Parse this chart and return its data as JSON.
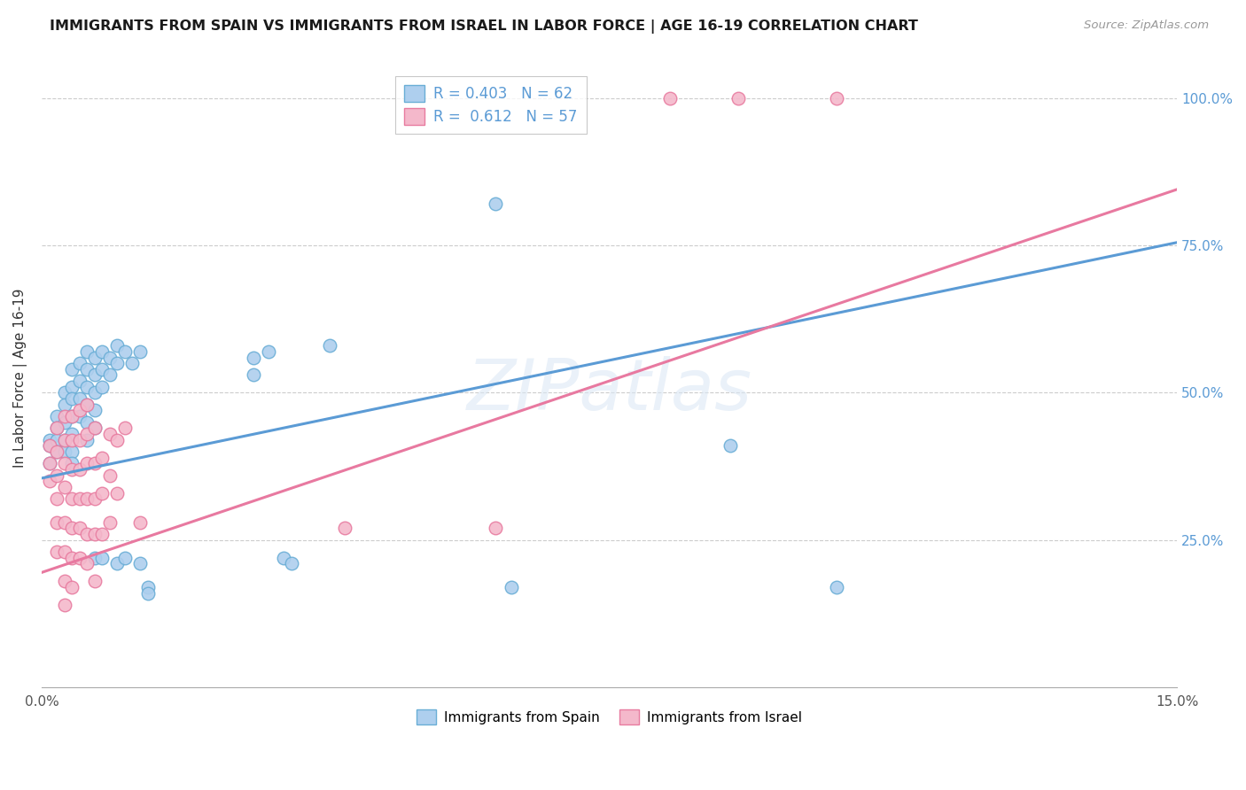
{
  "title": "IMMIGRANTS FROM SPAIN VS IMMIGRANTS FROM ISRAEL IN LABOR FORCE | AGE 16-19 CORRELATION CHART",
  "source": "Source: ZipAtlas.com",
  "ylabel": "In Labor Force | Age 16-19",
  "xmin": 0.0,
  "xmax": 0.15,
  "ymin": 0.0,
  "ymax": 1.05,
  "ytick_positions": [
    0.0,
    0.25,
    0.5,
    0.75,
    1.0
  ],
  "ytick_labels": [
    "",
    "25.0%",
    "50.0%",
    "75.0%",
    "100.0%"
  ],
  "xtick_positions": [
    0.0,
    0.05,
    0.1,
    0.15
  ],
  "xtick_labels": [
    "0.0%",
    "",
    "",
    "15.0%"
  ],
  "spain_fill_color": "#aecfee",
  "israel_fill_color": "#f4b8cb",
  "spain_edge_color": "#6aaed6",
  "israel_edge_color": "#e87ca0",
  "spain_line_color": "#5b9bd5",
  "israel_line_color": "#e879a0",
  "right_axis_color": "#5b9bd5",
  "legend_r_spain": "R = 0.403",
  "legend_n_spain": "N = 62",
  "legend_r_israel": "R =  0.612",
  "legend_n_israel": "N = 57",
  "watermark": "ZIPatlas",
  "spain_line_endpoints": [
    [
      0.0,
      0.355
    ],
    [
      0.15,
      0.755
    ]
  ],
  "israel_line_endpoints": [
    [
      0.0,
      0.195
    ],
    [
      0.15,
      0.845
    ]
  ],
  "spain_scatter": [
    [
      0.001,
      0.42
    ],
    [
      0.001,
      0.41
    ],
    [
      0.001,
      0.38
    ],
    [
      0.002,
      0.46
    ],
    [
      0.002,
      0.44
    ],
    [
      0.002,
      0.42
    ],
    [
      0.002,
      0.4
    ],
    [
      0.003,
      0.5
    ],
    [
      0.003,
      0.48
    ],
    [
      0.003,
      0.45
    ],
    [
      0.003,
      0.42
    ],
    [
      0.003,
      0.4
    ],
    [
      0.004,
      0.54
    ],
    [
      0.004,
      0.51
    ],
    [
      0.004,
      0.49
    ],
    [
      0.004,
      0.46
    ],
    [
      0.004,
      0.43
    ],
    [
      0.004,
      0.4
    ],
    [
      0.004,
      0.38
    ],
    [
      0.005,
      0.55
    ],
    [
      0.005,
      0.52
    ],
    [
      0.005,
      0.49
    ],
    [
      0.005,
      0.46
    ],
    [
      0.006,
      0.57
    ],
    [
      0.006,
      0.54
    ],
    [
      0.006,
      0.51
    ],
    [
      0.006,
      0.48
    ],
    [
      0.006,
      0.45
    ],
    [
      0.006,
      0.42
    ],
    [
      0.007,
      0.56
    ],
    [
      0.007,
      0.53
    ],
    [
      0.007,
      0.5
    ],
    [
      0.007,
      0.47
    ],
    [
      0.007,
      0.44
    ],
    [
      0.007,
      0.22
    ],
    [
      0.008,
      0.57
    ],
    [
      0.008,
      0.54
    ],
    [
      0.008,
      0.51
    ],
    [
      0.008,
      0.22
    ],
    [
      0.009,
      0.56
    ],
    [
      0.009,
      0.53
    ],
    [
      0.01,
      0.58
    ],
    [
      0.01,
      0.55
    ],
    [
      0.01,
      0.21
    ],
    [
      0.011,
      0.57
    ],
    [
      0.011,
      0.22
    ],
    [
      0.012,
      0.55
    ],
    [
      0.013,
      0.57
    ],
    [
      0.013,
      0.21
    ],
    [
      0.014,
      0.17
    ],
    [
      0.014,
      0.16
    ],
    [
      0.028,
      0.56
    ],
    [
      0.028,
      0.53
    ],
    [
      0.03,
      0.57
    ],
    [
      0.032,
      0.22
    ],
    [
      0.033,
      0.21
    ],
    [
      0.038,
      0.58
    ],
    [
      0.06,
      0.82
    ],
    [
      0.062,
      0.17
    ],
    [
      0.091,
      0.41
    ],
    [
      0.105,
      0.17
    ]
  ],
  "israel_scatter": [
    [
      0.001,
      0.41
    ],
    [
      0.001,
      0.38
    ],
    [
      0.001,
      0.35
    ],
    [
      0.002,
      0.44
    ],
    [
      0.002,
      0.4
    ],
    [
      0.002,
      0.36
    ],
    [
      0.002,
      0.32
    ],
    [
      0.002,
      0.28
    ],
    [
      0.002,
      0.23
    ],
    [
      0.003,
      0.46
    ],
    [
      0.003,
      0.42
    ],
    [
      0.003,
      0.38
    ],
    [
      0.003,
      0.34
    ],
    [
      0.003,
      0.28
    ],
    [
      0.003,
      0.23
    ],
    [
      0.003,
      0.18
    ],
    [
      0.003,
      0.14
    ],
    [
      0.004,
      0.46
    ],
    [
      0.004,
      0.42
    ],
    [
      0.004,
      0.37
    ],
    [
      0.004,
      0.32
    ],
    [
      0.004,
      0.27
    ],
    [
      0.004,
      0.22
    ],
    [
      0.004,
      0.17
    ],
    [
      0.005,
      0.47
    ],
    [
      0.005,
      0.42
    ],
    [
      0.005,
      0.37
    ],
    [
      0.005,
      0.32
    ],
    [
      0.005,
      0.27
    ],
    [
      0.005,
      0.22
    ],
    [
      0.006,
      0.48
    ],
    [
      0.006,
      0.43
    ],
    [
      0.006,
      0.38
    ],
    [
      0.006,
      0.32
    ],
    [
      0.006,
      0.26
    ],
    [
      0.006,
      0.21
    ],
    [
      0.007,
      0.44
    ],
    [
      0.007,
      0.38
    ],
    [
      0.007,
      0.32
    ],
    [
      0.007,
      0.26
    ],
    [
      0.007,
      0.18
    ],
    [
      0.008,
      0.39
    ],
    [
      0.008,
      0.33
    ],
    [
      0.008,
      0.26
    ],
    [
      0.009,
      0.43
    ],
    [
      0.009,
      0.36
    ],
    [
      0.009,
      0.28
    ],
    [
      0.01,
      0.42
    ],
    [
      0.01,
      0.33
    ],
    [
      0.011,
      0.44
    ],
    [
      0.013,
      0.28
    ],
    [
      0.04,
      0.27
    ],
    [
      0.06,
      0.27
    ],
    [
      0.083,
      1.0
    ],
    [
      0.092,
      1.0
    ],
    [
      0.105,
      1.0
    ]
  ]
}
